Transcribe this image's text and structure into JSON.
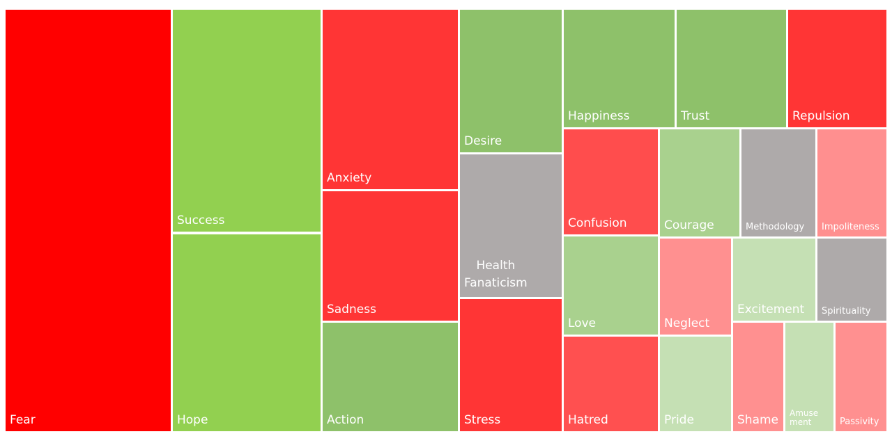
{
  "nodes": [
    {
      "label": "Fear",
      "color": "#ff0000"
    },
    {
      "label": "Success",
      "color": "#92d050"
    },
    {
      "label": "Hope",
      "color": "#92d050"
    },
    {
      "label": "Anxiety",
      "color": "#ff3535"
    },
    {
      "label": "Sadness",
      "color": "#ff3535"
    },
    {
      "label": "Action",
      "color": "#8ec16a"
    },
    {
      "label": "Desire",
      "color": "#8ec16a"
    },
    {
      "label": "Health\nFanaticism",
      "color": "#aeaaaa"
    },
    {
      "label": "Stress",
      "color": "#ff3535"
    },
    {
      "label": "Happiness",
      "color": "#8ec16a"
    },
    {
      "label": "Trust",
      "color": "#8ec16a"
    },
    {
      "label": "Repulsion",
      "color": "#ff3535"
    },
    {
      "label": "Confusion",
      "color": "#ff4d4d"
    },
    {
      "label": "Courage",
      "color": "#a9d18e"
    },
    {
      "label": "Methodology",
      "color": "#aeaaaa"
    },
    {
      "label": "Impoliteness",
      "color": "#ff8f8f"
    },
    {
      "label": "Love",
      "color": "#a9d18e"
    },
    {
      "label": "Hatred",
      "color": "#ff5050"
    },
    {
      "label": "Neglect",
      "color": "#ff9090"
    },
    {
      "label": "Pride",
      "color": "#c5e0b4"
    },
    {
      "label": "Excitement",
      "color": "#c5e0b4"
    },
    {
      "label": "Spirituality",
      "color": "#aeaaaa"
    },
    {
      "label": "Shame",
      "color": "#ff9090"
    },
    {
      "label": "Amuse\nment",
      "color": "#c5e0b4"
    },
    {
      "label": "Passivity",
      "color": "#ff9090"
    }
  ]
}
